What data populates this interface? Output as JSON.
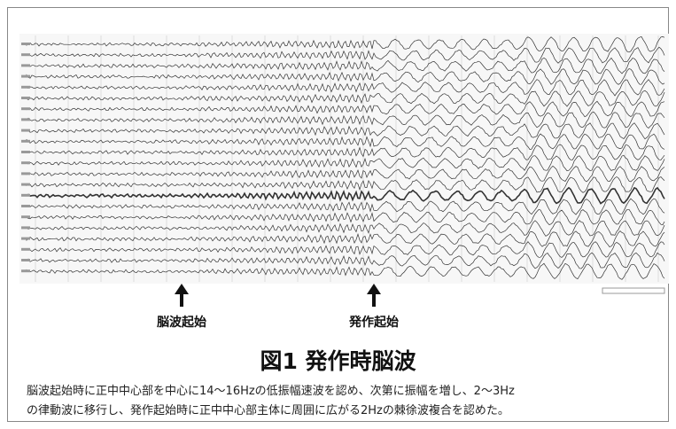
{
  "figure": {
    "arrow_labels": [
      "脳波起始",
      "発作起始"
    ],
    "title": "図1 発作時脳波",
    "caption": [
      "脳波起始時に正中中心部を中心に14〜16Hzの低振幅速波を認め、次第に振幅を増し、2〜3Hz",
      "の律動波に移行し、発作起始時に正中中心部主体に周囲に広がる2Hzの棘徐波複合を認めた。"
    ]
  }
}
